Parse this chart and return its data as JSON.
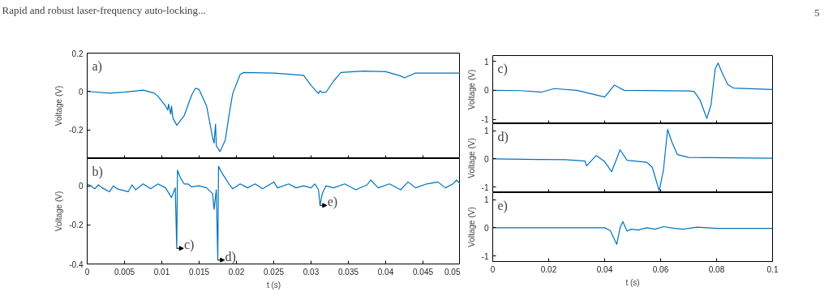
{
  "chart_data": [
    {
      "type": "other",
      "annotations": [
        "Rapid and robust laser-frequency auto-locking...",
        "5"
      ]
    },
    {
      "type": "line",
      "ylabel": "Voltage (V)",
      "annotations": [
        "a)"
      ],
      "tick_labels": "y",
      "x": [
        0,
        0.003,
        0.005,
        0.0075,
        0.009,
        0.0095,
        0.0105,
        0.0108,
        0.0109,
        0.0112,
        0.0113,
        0.0115,
        0.012,
        0.013,
        0.014,
        0.0145,
        0.015,
        0.016,
        0.0168,
        0.017,
        0.0172,
        0.0173,
        0.0178,
        0.0185,
        0.019,
        0.0195,
        0.0205,
        0.021,
        0.025,
        0.029,
        0.03,
        0.031,
        0.0312,
        0.0315,
        0.032,
        0.033,
        0.034,
        0.037,
        0.04,
        0.042,
        0.0425,
        0.044,
        0.05
      ],
      "series": [
        {
          "color": "#0072bd",
          "values": [
            0,
            -0.009,
            -0.004,
            0.007,
            -0.009,
            -0.026,
            -0.076,
            -0.097,
            -0.066,
            -0.119,
            -0.076,
            -0.14,
            -0.176,
            -0.126,
            -0.019,
            0.017,
            0.01,
            -0.076,
            -0.24,
            -0.269,
            -0.171,
            -0.283,
            -0.314,
            -0.254,
            -0.126,
            -0.011,
            0.089,
            0.099,
            0.096,
            0.084,
            0.031,
            -0.011,
            0.004,
            -0.006,
            -0.004,
            0.053,
            0.099,
            0.106,
            0.103,
            0.081,
            0.071,
            0.096,
            0.096
          ]
        }
      ],
      "xlim": [
        0,
        0.05
      ],
      "ylim": [
        -0.35,
        0.2
      ],
      "xticks": [
        0,
        0.005,
        0.01,
        0.015,
        0.02,
        0.025,
        0.03,
        0.035,
        0.04,
        0.045,
        0.05
      ],
      "yticks": [
        -0.2,
        0,
        0.2
      ]
    },
    {
      "type": "line",
      "xlabel": "t (s)",
      "ylabel": "Voltage (V)",
      "annotations": [
        "b)",
        {
          "text": "c)",
          "x": 0.012,
          "y": -0.32
        },
        {
          "text": "d)",
          "x": 0.0175,
          "y": -0.38
        },
        {
          "text": "e)",
          "x": 0.0312,
          "y": -0.1
        }
      ],
      "x": [
        0,
        0.0005,
        0.001,
        0.0015,
        0.002,
        0.003,
        0.0035,
        0.004,
        0.0055,
        0.006,
        0.0065,
        0.0075,
        0.0085,
        0.0095,
        0.0105,
        0.0113,
        0.0118,
        0.012,
        0.0121,
        0.0125,
        0.013,
        0.0135,
        0.014,
        0.015,
        0.016,
        0.0168,
        0.017,
        0.0173,
        0.0175,
        0.0176,
        0.018,
        0.0185,
        0.019,
        0.0195,
        0.0205,
        0.0215,
        0.0225,
        0.0235,
        0.025,
        0.0255,
        0.027,
        0.028,
        0.029,
        0.03,
        0.0305,
        0.031,
        0.0312,
        0.0315,
        0.032,
        0.033,
        0.0345,
        0.036,
        0.0375,
        0.038,
        0.039,
        0.0405,
        0.042,
        0.043,
        0.044,
        0.0455,
        0.047,
        0.048,
        0.049,
        0.0495,
        0.05
      ],
      "series": [
        {
          "color": "#0072bd",
          "values": [
            0.01,
            0,
            -0.015,
            0.005,
            -0.01,
            -0.03,
            0,
            -0.015,
            -0.03,
            0.005,
            -0.02,
            0.01,
            -0.015,
            0.01,
            -0.01,
            -0.06,
            -0.01,
            -0.32,
            0.08,
            0.04,
            0.01,
            0.01,
            -0.005,
            0,
            -0.01,
            -0.04,
            -0.12,
            -0.02,
            -0.38,
            0.1,
            0.07,
            0.04,
            0.01,
            -0.015,
            0.01,
            -0.01,
            0.01,
            -0.015,
            0.02,
            -0.01,
            0.01,
            -0.01,
            0,
            -0.01,
            0.01,
            -0.02,
            -0.1,
            -0.04,
            0,
            -0.01,
            0.01,
            -0.02,
            0.005,
            0.03,
            -0.01,
            0.01,
            -0.02,
            0.02,
            -0.01,
            0.01,
            0.02,
            -0.01,
            0.01,
            0.03,
            0.01
          ]
        }
      ],
      "xlim": [
        0,
        0.05
      ],
      "ylim": [
        -0.4,
        0.14
      ],
      "xticks": [
        0,
        0.005,
        0.01,
        0.015,
        0.02,
        0.025,
        0.03,
        0.035,
        0.04,
        0.045,
        0.05
      ],
      "yticks": [
        -0.4,
        -0.2,
        0
      ]
    },
    {
      "type": "line",
      "ylabel": "Voltage (V)",
      "annotations": [
        "c)"
      ],
      "tick_labels": "y",
      "x": [
        0,
        0.01,
        0.0175,
        0.022,
        0.03,
        0.04,
        0.0435,
        0.047,
        0.07,
        0.072,
        0.074,
        0.0765,
        0.078,
        0.0795,
        0.0805,
        0.082,
        0.084,
        0.086,
        0.1
      ],
      "series": [
        {
          "color": "#0072bd",
          "values": [
            0,
            -0.01,
            -0.06,
            0.06,
            0,
            -0.23,
            0.18,
            0,
            -0.02,
            -0.04,
            -0.32,
            -0.97,
            -0.5,
            0.74,
            0.94,
            0.6,
            0.2,
            0.08,
            0.03
          ]
        }
      ],
      "xlim": [
        0,
        0.1
      ],
      "ylim": [
        -1.15,
        1.2
      ],
      "xticks": [
        0,
        0.02,
        0.04,
        0.06,
        0.08,
        0.1
      ],
      "yticks": [
        -1,
        0,
        1
      ]
    },
    {
      "type": "line",
      "ylabel": "Voltage (V)",
      "annotations": [
        "d)"
      ],
      "tick_labels": "y",
      "x": [
        0,
        0.016,
        0.026,
        0.033,
        0.0335,
        0.037,
        0.04,
        0.0425,
        0.0455,
        0.048,
        0.055,
        0.057,
        0.0595,
        0.061,
        0.0625,
        0.064,
        0.066,
        0.07,
        0.1
      ],
      "series": [
        {
          "color": "#0072bd",
          "values": [
            0,
            -0.02,
            -0.03,
            -0.08,
            -0.25,
            0.12,
            -0.1,
            -0.46,
            0.32,
            -0.05,
            -0.12,
            -0.3,
            -1.14,
            -0.4,
            1.05,
            0.6,
            0.15,
            0.05,
            0.02
          ]
        }
      ],
      "xlim": [
        0,
        0.1
      ],
      "ylim": [
        -1.2,
        1.25
      ],
      "xticks": [
        0,
        0.02,
        0.04,
        0.06,
        0.08,
        0.1
      ],
      "yticks": [
        -1,
        0,
        1
      ]
    },
    {
      "type": "line",
      "xlabel": "t (s)",
      "ylabel": "Voltage (V)",
      "annotations": [
        "e)"
      ],
      "x": [
        0,
        0.04,
        0.042,
        0.0443,
        0.0455,
        0.0465,
        0.048,
        0.0495,
        0.052,
        0.055,
        0.058,
        0.061,
        0.065,
        0.068,
        0.073,
        0.08,
        0.1
      ],
      "series": [
        {
          "color": "#0072bd",
          "values": [
            0,
            0,
            -0.1,
            -0.59,
            0,
            0.22,
            -0.12,
            -0.05,
            -0.08,
            0,
            -0.05,
            0.04,
            -0.02,
            -0.05,
            0.02,
            -0.02,
            -0.02
          ]
        }
      ],
      "xlim": [
        0,
        0.1
      ],
      "ylim": [
        -1.2,
        1.25
      ],
      "xticks": [
        0,
        0.02,
        0.04,
        0.06,
        0.08,
        0.1
      ],
      "yticks": [
        -1,
        0,
        1
      ]
    }
  ]
}
